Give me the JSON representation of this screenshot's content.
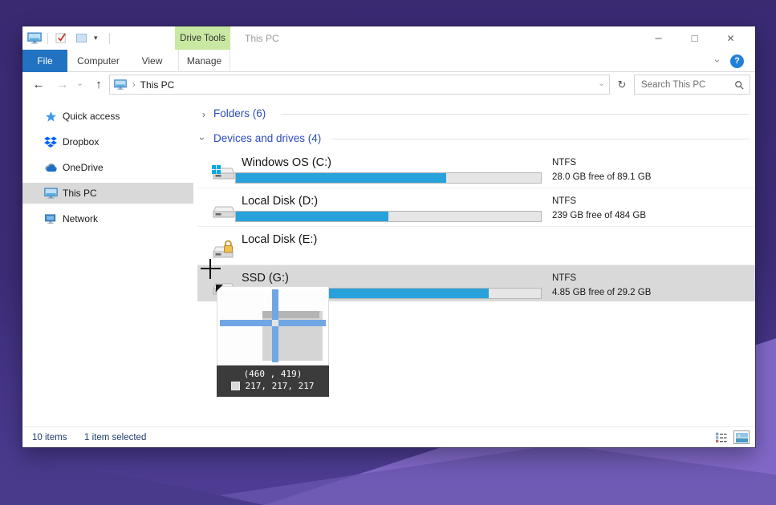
{
  "titlebar": {
    "contextual_tab": "Drive Tools",
    "window_title": "This PC",
    "minimize": "–",
    "maximize": "□",
    "close": "✕",
    "qat_dropdown": "▾"
  },
  "ribbon": {
    "tabs": {
      "file": "File",
      "computer": "Computer",
      "view": "View",
      "manage": "Manage"
    },
    "collapse_chevron": "›",
    "help": "?"
  },
  "navbar": {
    "back": "←",
    "forward": "→",
    "history_chevron": "›",
    "up": "↑",
    "address_location": "This PC",
    "address_chevron": "›",
    "address_dropdown": "›",
    "refresh": "↻",
    "search_placeholder": "Search This PC"
  },
  "sidebar": {
    "items": [
      {
        "label": "Quick access"
      },
      {
        "label": "Dropbox"
      },
      {
        "label": "OneDrive"
      },
      {
        "label": "This PC",
        "selected": true
      },
      {
        "label": "Network"
      }
    ]
  },
  "content": {
    "groups": [
      {
        "label": "Folders (6)",
        "chevron": "›",
        "collapsed": true
      },
      {
        "label": "Devices and drives (4)",
        "chevron": "›",
        "collapsed": false
      }
    ],
    "drives": [
      {
        "name": "Windows OS (C:)",
        "filesystem": "NTFS",
        "free_text": "28.0 GB free of 89.1 GB",
        "used_pct": 69
      },
      {
        "name": "Local Disk (D:)",
        "filesystem": "NTFS",
        "free_text": "239 GB free of 484 GB",
        "used_pct": 50
      },
      {
        "name": "Local Disk (E:)",
        "locked": true
      },
      {
        "name": "SSD (G:)",
        "filesystem": "NTFS",
        "free_text": "4.85 GB free of 29.2 GB",
        "used_pct": 83,
        "selected": true
      }
    ]
  },
  "picker_overlay": {
    "coords_text": "(460 , 419)",
    "rgb_text": "217, 217, 217",
    "picked_color": "#d9d9d9"
  },
  "statusbar": {
    "total_items": "10 items",
    "selection": "1 item selected"
  },
  "colors": {
    "accent_blue": "#2272c2",
    "bar_fill": "#29a2dc",
    "contextual_green": "#c9e8a1",
    "selection_gray": "#d9d9d9"
  }
}
